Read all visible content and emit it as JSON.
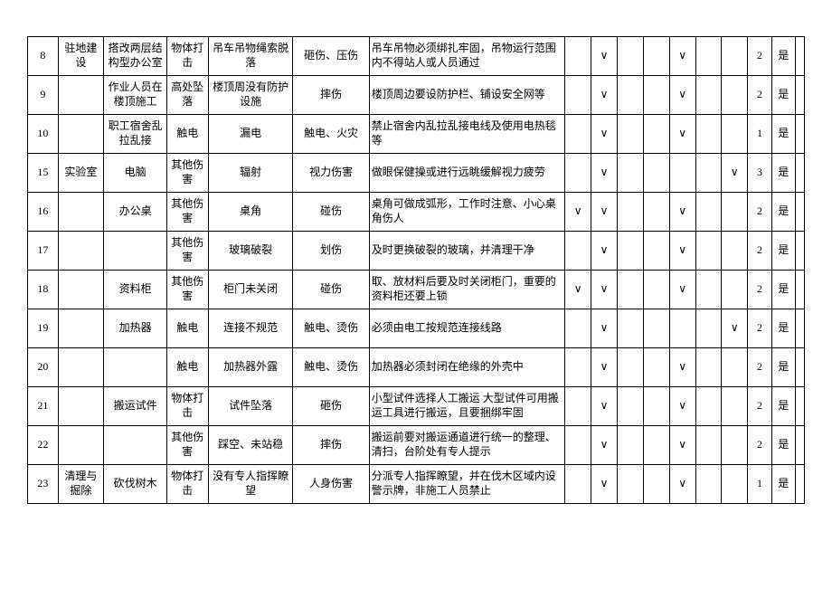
{
  "rows": [
    {
      "no": "8",
      "a": "驻地建设",
      "b": "搭改两层结构型办公室",
      "c": "物体打击",
      "d": "吊车吊物绳索脱落",
      "e": "砸伤、压伤",
      "f": "吊车吊物必须绑扎牢固，吊物运行范围内不得站人或人员通过",
      "ck": [
        "",
        "∨",
        "",
        "",
        "∨",
        "",
        ""
      ],
      "g": "2",
      "h": "是"
    },
    {
      "no": "9",
      "a": "",
      "b": "作业人员在楼顶施工",
      "c": "高处坠落",
      "d": "楼顶周没有防护设施",
      "e": "摔伤",
      "f": "楼顶周边要设防护栏、铺设安全网等",
      "ck": [
        "",
        "∨",
        "",
        "",
        "∨",
        "",
        ""
      ],
      "g": "2",
      "h": "是"
    },
    {
      "no": "10",
      "a": "",
      "b": "职工宿舍乱拉乱接",
      "c": "触电",
      "d": "漏电",
      "e": "触电、火灾",
      "f": "禁止宿舍内乱拉乱接电线及使用电热毯等",
      "ck": [
        "",
        "∨",
        "",
        "",
        "∨",
        "",
        ""
      ],
      "g": "1",
      "h": "是"
    },
    {
      "no": "15",
      "a": "实验室",
      "b": "电脑",
      "c": "其他伤害",
      "d": "辐射",
      "e": "视力伤害",
      "f": "做眼保健操或进行远眺缓解视力疲劳",
      "ck": [
        "",
        "∨",
        "",
        "",
        "",
        "",
        "∨"
      ],
      "g": "3",
      "h": "是"
    },
    {
      "no": "16",
      "a": "",
      "b": "办公桌",
      "c": "其他伤害",
      "d": "桌角",
      "e": "碰伤",
      "f": "桌角可做成弧形，工作时注意、小心桌角伤人",
      "ck": [
        "∨",
        "∨",
        "",
        "",
        "∨",
        "",
        ""
      ],
      "g": "2",
      "h": "是"
    },
    {
      "no": "17",
      "a": "",
      "b": "",
      "c": "其他伤害",
      "d": "玻璃破裂",
      "e": "划伤",
      "f": "及时更换破裂的玻璃，并清理干净",
      "ck": [
        "",
        "∨",
        "",
        "",
        "∨",
        "",
        ""
      ],
      "g": "2",
      "h": "是"
    },
    {
      "no": "18",
      "a": "",
      "b": "资料柜",
      "c": "其他伤害",
      "d": "柜门未关闭",
      "e": "碰伤",
      "f": "取、放材料后要及时关闭柜门，重要的资料柜还要上锁",
      "ck": [
        "∨",
        "∨",
        "",
        "",
        "∨",
        "",
        ""
      ],
      "g": "2",
      "h": "是"
    },
    {
      "no": "19",
      "a": "",
      "b": "加热器",
      "c": "触电",
      "d": "连接不规范",
      "e": "触电、烫伤",
      "f": "必须由电工按规范连接线路",
      "ck": [
        "",
        "∨",
        "",
        "",
        "",
        "",
        "∨"
      ],
      "g": "2",
      "h": "是"
    },
    {
      "no": "20",
      "a": "",
      "b": "",
      "c": "触电",
      "d": "加热器外露",
      "e": "触电、烫伤",
      "f": "加热器必须封闭在绝缘的外壳中",
      "ck": [
        "",
        "∨",
        "",
        "",
        "∨",
        "",
        ""
      ],
      "g": "2",
      "h": "是"
    },
    {
      "no": "21",
      "a": "",
      "b": "搬运试件",
      "c": "物体打击",
      "d": "试件坠落",
      "e": "砸伤",
      "f": "小型试件选择人工搬运 大型试件可用搬运工具进行搬运，且要捆绑牢固",
      "ck": [
        "",
        "∨",
        "",
        "",
        "∨",
        "",
        ""
      ],
      "g": "2",
      "h": "是"
    },
    {
      "no": "22",
      "a": "",
      "b": "",
      "c": "其他伤害",
      "d": "踩空、未站稳",
      "e": "摔伤",
      "f": "搬运前要对搬运通道进行统一的整理、清扫，台阶处有专人提示",
      "ck": [
        "",
        "∨",
        "",
        "",
        "∨",
        "",
        ""
      ],
      "g": "2",
      "h": "是"
    },
    {
      "no": "23",
      "a": "清理与掘除",
      "b": "砍伐树木",
      "c": "物体打击",
      "d": "没有专人指挥瞭望",
      "e": "人身伤害",
      "f": "分派专人指挥瞭望，并在伐木区域内设警示牌，非施工人员禁止",
      "ck": [
        "",
        "∨",
        "",
        "",
        "∨",
        "",
        ""
      ],
      "g": "1",
      "h": "是"
    }
  ]
}
